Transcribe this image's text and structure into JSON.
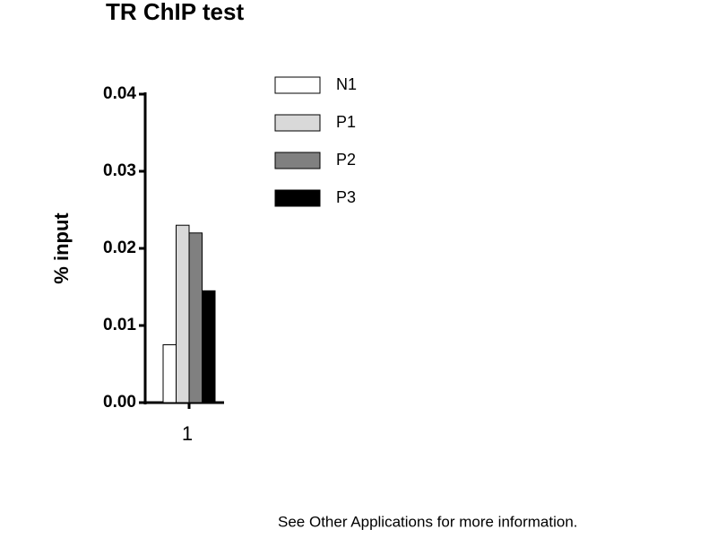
{
  "chart_data": {
    "type": "bar",
    "title": "TR  ChIP test",
    "y_label": "% input",
    "categories": [
      "1"
    ],
    "series": [
      {
        "name": "N1",
        "color": "#ffffff",
        "values": [
          0.0075
        ]
      },
      {
        "name": "P1",
        "color": "#d9d9d9",
        "values": [
          0.023
        ]
      },
      {
        "name": "P2",
        "color": "#808080",
        "values": [
          0.022
        ]
      },
      {
        "name": "P3",
        "color": "#000000",
        "values": [
          0.0145
        ]
      }
    ],
    "ylim": [
      0,
      0.04
    ],
    "yticks": [
      {
        "value": 0,
        "label": "0.00"
      },
      0.01,
      0.02,
      0.03,
      0.04
    ],
    "grid": false,
    "footnote": "See Other Applications  for more information."
  }
}
